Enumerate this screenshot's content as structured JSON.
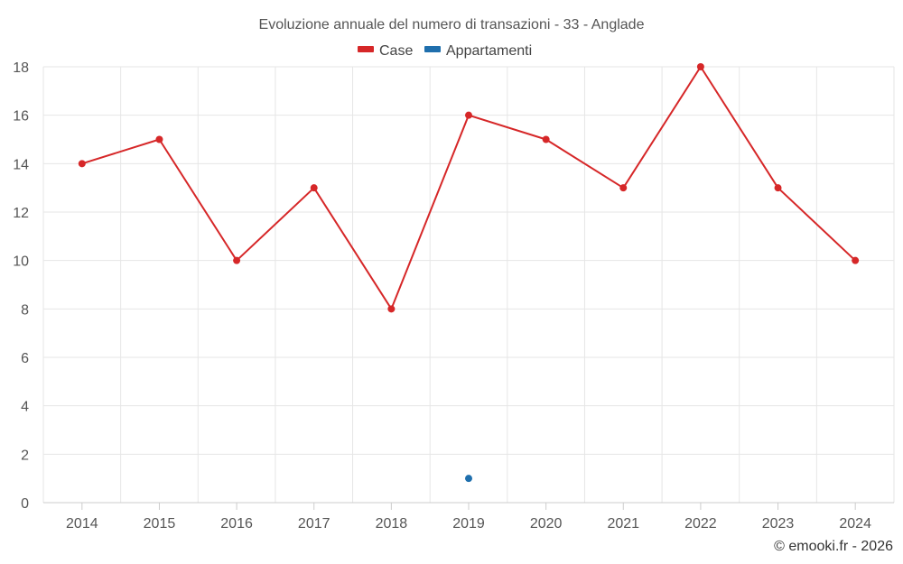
{
  "chart_data": {
    "type": "line",
    "title": "Evoluzione annuale del numero di transazioni - 33 - Anglade",
    "categories": [
      "2014",
      "2015",
      "2016",
      "2017",
      "2018",
      "2019",
      "2020",
      "2021",
      "2022",
      "2023",
      "2024"
    ],
    "series": [
      {
        "name": "Case",
        "color": "#d62728",
        "values": [
          14,
          15,
          10,
          13,
          8,
          16,
          15,
          13,
          18,
          13,
          10
        ]
      },
      {
        "name": "Appartamenti",
        "color": "#1f6fad",
        "values": [
          null,
          null,
          null,
          null,
          null,
          1,
          null,
          null,
          null,
          null,
          null
        ]
      }
    ],
    "y_ticks": [
      "0",
      "2",
      "4",
      "6",
      "8",
      "10",
      "12",
      "14",
      "16",
      "18"
    ],
    "ylim": [
      0,
      18
    ],
    "xlabel": "",
    "ylabel": "",
    "grid": true,
    "legend_position": "top-center"
  },
  "credit": "© emooki.fr - 2026"
}
